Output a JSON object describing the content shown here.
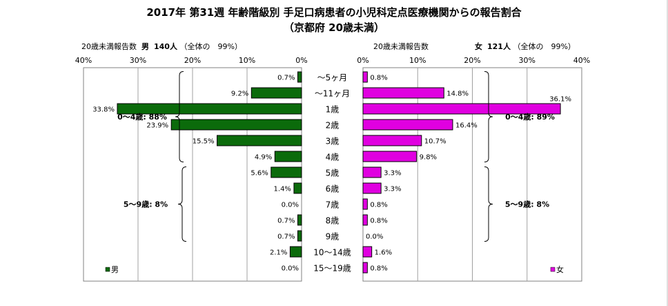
{
  "title": "2017年 第31週 年齢階級別 手足口病患者の小児科定点医療機関からの報告割合",
  "subtitle": "（京都府 20歳未満）",
  "chart_data": {
    "type": "bar",
    "categories": [
      "～5ヶ月",
      "～11ヶ月",
      "1歳",
      "2歳",
      "3歳",
      "4歳",
      "5歳",
      "6歳",
      "7歳",
      "8歳",
      "9歳",
      "10～14歳",
      "15～19歳"
    ],
    "panels": [
      {
        "header_prefix": "20歳未満報告数",
        "header_sex": "男",
        "header_count": "140人",
        "header_share": "（全体の　99%）",
        "legend": "男",
        "color": "#0b6b0b",
        "xlim": [
          0,
          40
        ],
        "tick_labels": [
          "0%",
          "10%",
          "20%",
          "30%",
          "40%"
        ],
        "values": [
          0.7,
          9.2,
          33.8,
          23.9,
          15.5,
          4.9,
          5.6,
          1.4,
          0.0,
          0.7,
          0.7,
          2.1,
          0.0
        ],
        "value_labels": [
          "0.7%",
          "9.2%",
          "33.8%",
          "23.9%",
          "15.5%",
          "4.9%",
          "5.6%",
          "1.4%",
          "0.0%",
          "0.7%",
          "0.7%",
          "2.1%",
          "0.0%"
        ],
        "brackets": [
          {
            "label": "0～4歳: 88%",
            "from": 0,
            "to": 5
          },
          {
            "label": "5～9歳: 8%",
            "from": 6,
            "to": 10
          }
        ]
      },
      {
        "header_prefix": "20歳未満報告数",
        "header_sex": "女",
        "header_count": "121人",
        "header_share": "（全体の　99%）",
        "legend": "女",
        "color": "#e000e0",
        "xlim": [
          0,
          40
        ],
        "tick_labels": [
          "0%",
          "10%",
          "20%",
          "30%",
          "40%"
        ],
        "values": [
          0.8,
          14.8,
          36.1,
          16.4,
          10.7,
          9.8,
          3.3,
          3.3,
          0.8,
          0.8,
          0.0,
          1.6,
          0.8
        ],
        "value_labels": [
          "0.8%",
          "14.8%",
          "36.1%",
          "16.4%",
          "10.7%",
          "9.8%",
          "3.3%",
          "3.3%",
          "0.8%",
          "0.8%",
          "0.0%",
          "1.6%",
          "0.8%"
        ],
        "brackets": [
          {
            "label": "0～4歳: 89%",
            "from": 0,
            "to": 5
          },
          {
            "label": "5～9歳: 8%",
            "from": 6,
            "to": 10
          }
        ]
      }
    ]
  }
}
